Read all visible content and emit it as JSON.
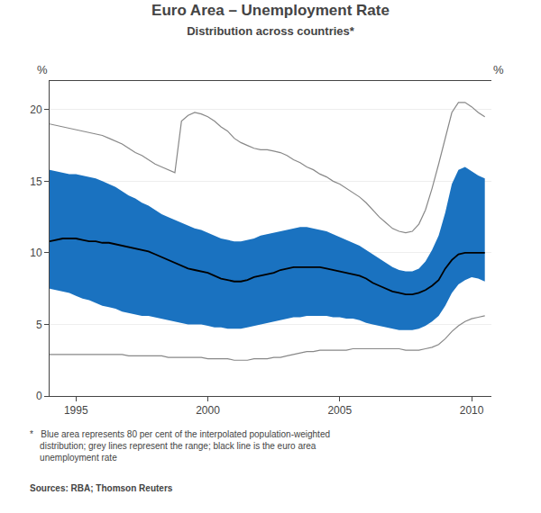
{
  "chart_data": {
    "type": "line",
    "title": "Euro Area – Unemployment Rate",
    "subtitle": "Distribution across countries*",
    "ylabel": "%",
    "y2label": "%",
    "annotations": [
      "*   Blue area represents 80 per cent of the interpolated population-weighted\n    distribution; grey lines represent the range; black line is the euro area\n    unemployment rate",
      "Sources: RBA; Thomson Reuters"
    ],
    "x": [
      1994.0,
      1994.25,
      1994.5,
      1994.75,
      1995.0,
      1995.25,
      1995.5,
      1995.75,
      1996.0,
      1996.25,
      1996.5,
      1996.75,
      1997.0,
      1997.25,
      1997.5,
      1997.75,
      1998.0,
      1998.25,
      1998.5,
      1998.75,
      1999.0,
      1999.25,
      1999.5,
      1999.75,
      2000.0,
      2000.25,
      2000.5,
      2000.75,
      2001.0,
      2001.25,
      2001.5,
      2001.75,
      2002.0,
      2002.25,
      2002.5,
      2002.75,
      2003.0,
      2003.25,
      2003.5,
      2003.75,
      2004.0,
      2004.25,
      2004.5,
      2004.75,
      2005.0,
      2005.25,
      2005.5,
      2005.75,
      2006.0,
      2006.25,
      2006.5,
      2006.75,
      2007.0,
      2007.25,
      2007.5,
      2007.75,
      2008.0,
      2008.25,
      2008.5,
      2008.75,
      2009.0,
      2009.25,
      2009.5,
      2009.75,
      2010.0,
      2010.25,
      2010.5
    ],
    "series": [
      {
        "type": "band",
        "color": "#1a72c0",
        "lower": [
          7.5,
          7.4,
          7.3,
          7.2,
          7.0,
          6.8,
          6.7,
          6.5,
          6.3,
          6.2,
          6.1,
          5.9,
          5.8,
          5.7,
          5.6,
          5.6,
          5.5,
          5.4,
          5.3,
          5.2,
          5.1,
          5.0,
          5.0,
          5.0,
          4.9,
          4.8,
          4.8,
          4.7,
          4.7,
          4.7,
          4.8,
          4.9,
          5.0,
          5.1,
          5.2,
          5.3,
          5.4,
          5.5,
          5.5,
          5.6,
          5.6,
          5.6,
          5.6,
          5.5,
          5.5,
          5.4,
          5.4,
          5.3,
          5.1,
          5.0,
          4.9,
          4.8,
          4.7,
          4.6,
          4.6,
          4.6,
          4.7,
          4.9,
          5.2,
          5.6,
          6.3,
          7.2,
          7.8,
          8.1,
          8.3,
          8.2,
          8.0
        ],
        "upper": [
          15.8,
          15.7,
          15.6,
          15.5,
          15.5,
          15.4,
          15.3,
          15.2,
          15.0,
          14.8,
          14.6,
          14.3,
          14.0,
          13.8,
          13.5,
          13.3,
          13.0,
          12.7,
          12.5,
          12.3,
          12.1,
          11.9,
          11.7,
          11.6,
          11.4,
          11.2,
          11.0,
          10.9,
          10.8,
          10.8,
          10.9,
          11.0,
          11.2,
          11.3,
          11.4,
          11.5,
          11.6,
          11.7,
          11.8,
          11.8,
          11.7,
          11.6,
          11.5,
          11.3,
          11.1,
          10.9,
          10.7,
          10.5,
          10.2,
          9.9,
          9.6,
          9.3,
          9.0,
          8.8,
          8.7,
          8.7,
          8.9,
          9.4,
          10.2,
          11.2,
          12.8,
          14.8,
          15.8,
          16.0,
          15.7,
          15.4,
          15.2
        ]
      },
      {
        "type": "line",
        "color": "#888888",
        "values": [
          2.9,
          2.9,
          2.9,
          2.9,
          2.9,
          2.9,
          2.9,
          2.9,
          2.9,
          2.9,
          2.9,
          2.9,
          2.8,
          2.8,
          2.8,
          2.8,
          2.8,
          2.8,
          2.7,
          2.7,
          2.7,
          2.7,
          2.7,
          2.7,
          2.6,
          2.6,
          2.6,
          2.6,
          2.5,
          2.5,
          2.5,
          2.6,
          2.6,
          2.6,
          2.7,
          2.7,
          2.8,
          2.9,
          3.0,
          3.1,
          3.1,
          3.2,
          3.2,
          3.2,
          3.2,
          3.2,
          3.3,
          3.3,
          3.3,
          3.3,
          3.3,
          3.3,
          3.3,
          3.3,
          3.2,
          3.2,
          3.2,
          3.3,
          3.4,
          3.6,
          4.0,
          4.5,
          4.9,
          5.2,
          5.4,
          5.5,
          5.6
        ]
      },
      {
        "type": "line",
        "color": "#888888",
        "values": [
          19.0,
          18.9,
          18.8,
          18.7,
          18.6,
          18.5,
          18.4,
          18.3,
          18.2,
          18.0,
          17.8,
          17.6,
          17.3,
          17.0,
          16.8,
          16.5,
          16.2,
          16.0,
          15.8,
          15.6,
          19.2,
          19.6,
          19.8,
          19.7,
          19.5,
          19.2,
          18.8,
          18.5,
          18.0,
          17.7,
          17.5,
          17.3,
          17.2,
          17.2,
          17.1,
          17.0,
          16.8,
          16.5,
          16.3,
          16.0,
          15.8,
          15.5,
          15.3,
          15.0,
          14.8,
          14.5,
          14.2,
          13.9,
          13.5,
          13.0,
          12.5,
          12.1,
          11.7,
          11.5,
          11.4,
          11.5,
          12.0,
          13.0,
          14.5,
          16.2,
          18.0,
          19.8,
          20.5,
          20.5,
          20.2,
          19.8,
          19.5
        ]
      },
      {
        "type": "line",
        "color": "#000000",
        "values": [
          10.8,
          10.9,
          11.0,
          11.0,
          11.0,
          10.9,
          10.8,
          10.8,
          10.7,
          10.7,
          10.6,
          10.5,
          10.4,
          10.3,
          10.2,
          10.1,
          9.9,
          9.7,
          9.5,
          9.3,
          9.1,
          8.9,
          8.8,
          8.7,
          8.6,
          8.4,
          8.2,
          8.1,
          8.0,
          8.0,
          8.1,
          8.3,
          8.4,
          8.5,
          8.6,
          8.8,
          8.9,
          9.0,
          9.0,
          9.0,
          9.0,
          9.0,
          8.9,
          8.8,
          8.7,
          8.6,
          8.5,
          8.4,
          8.2,
          7.9,
          7.7,
          7.5,
          7.3,
          7.2,
          7.1,
          7.1,
          7.2,
          7.4,
          7.7,
          8.1,
          8.9,
          9.5,
          9.9,
          10.0,
          10.0,
          10.0,
          10.0
        ]
      }
    ],
    "xlim": [
      1994.0,
      2010.75
    ],
    "xticks": [
      1995,
      2000,
      2005,
      2010
    ],
    "ylim": [
      0,
      22
    ],
    "yticks": [
      0,
      5,
      10,
      15,
      20
    ],
    "y2lim": [
      0,
      22
    ],
    "y2ticks": [
      0,
      5,
      10,
      15,
      20
    ],
    "grid": "y"
  }
}
